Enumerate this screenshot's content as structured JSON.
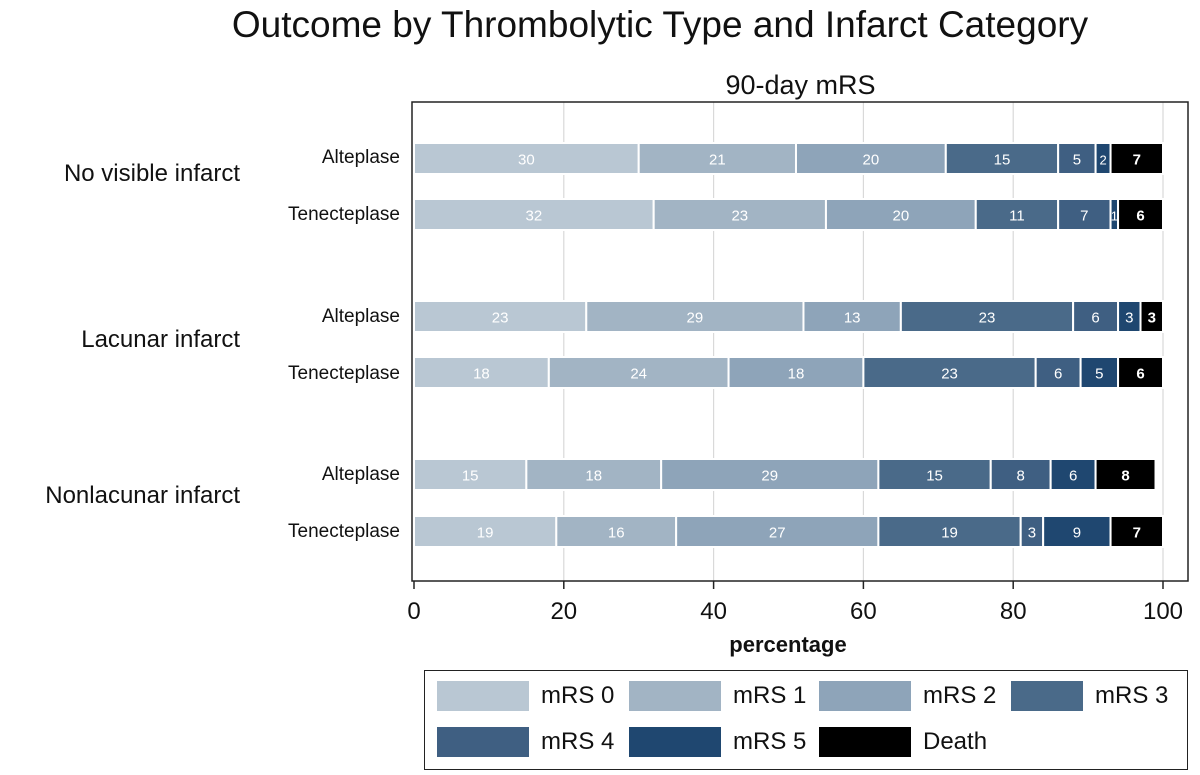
{
  "chart_data": {
    "type": "bar",
    "orientation": "horizontal",
    "stacked": true,
    "title": "Outcome by Thrombolytic Type and Infarct Category",
    "subtitle": "90-day mRS",
    "xlabel": "percentage",
    "xlim": [
      0,
      100
    ],
    "xticks": [
      0,
      20,
      40,
      60,
      80,
      100
    ],
    "grid": true,
    "legend_position": "bottom",
    "categories": [
      "mRS 0",
      "mRS 1",
      "mRS 2",
      "mRS 3",
      "mRS 4",
      "mRS 5",
      "Death"
    ],
    "colors": [
      "#b9c7d3",
      "#a2b4c4",
      "#8ea4b9",
      "#4a6a89",
      "#3f5f82",
      "#1f4770",
      "#000000"
    ],
    "groups": [
      {
        "label": "No visible infarct",
        "rows": [
          {
            "label": "Alteplase",
            "values": [
              30,
              21,
              20,
              15,
              5,
              2,
              7
            ]
          },
          {
            "label": "Tenecteplase",
            "values": [
              32,
              23,
              20,
              11,
              7,
              1,
              6
            ]
          }
        ]
      },
      {
        "label": "Lacunar infarct",
        "rows": [
          {
            "label": "Alteplase",
            "values": [
              23,
              29,
              13,
              23,
              6,
              3,
              3
            ]
          },
          {
            "label": "Tenecteplase",
            "values": [
              18,
              24,
              18,
              23,
              6,
              5,
              6
            ]
          }
        ]
      },
      {
        "label": "Nonlacunar infarct",
        "rows": [
          {
            "label": "Alteplase",
            "values": [
              15,
              18,
              29,
              15,
              8,
              6,
              8
            ]
          },
          {
            "label": "Tenecteplase",
            "values": [
              19,
              16,
              27,
              19,
              3,
              9,
              7
            ]
          }
        ]
      }
    ]
  }
}
